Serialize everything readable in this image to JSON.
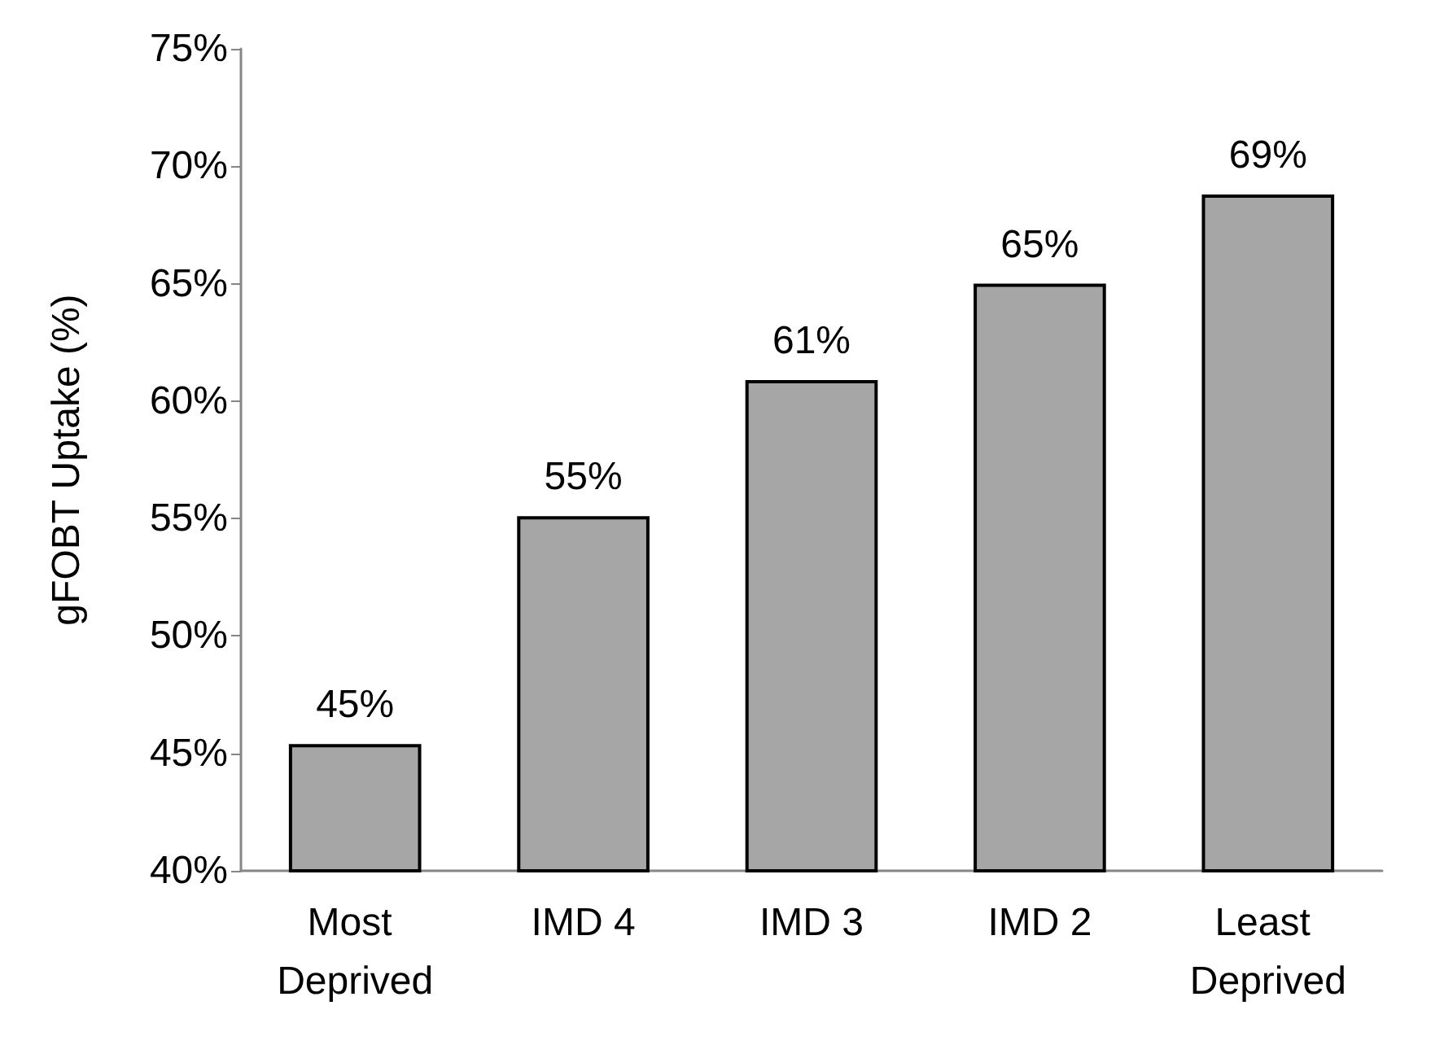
{
  "chart_data": {
    "type": "bar",
    "ylabel": "gFOBT Uptake (%)",
    "categories": [
      "Most Deprived",
      "IMD 4",
      "IMD 3",
      "IMD 2",
      "Least Deprived"
    ],
    "values": [
      45.4,
      55.1,
      60.9,
      65.0,
      68.8
    ],
    "value_labels": [
      "45%",
      "55%",
      "61%",
      "65%",
      "69%"
    ],
    "color": "#a6a6a6",
    "ylim": [
      40,
      75
    ],
    "yticks": [
      {
        "value": 40,
        "label": "40%"
      },
      {
        "value": 45,
        "label": "45%"
      },
      {
        "value": 50,
        "label": "50%"
      },
      {
        "value": 55,
        "label": "55%"
      },
      {
        "value": 60,
        "label": "60%"
      },
      {
        "value": 65,
        "label": "65%"
      },
      {
        "value": 70,
        "label": "70%"
      },
      {
        "value": 75,
        "label": "75%"
      }
    ],
    "grid": false
  }
}
